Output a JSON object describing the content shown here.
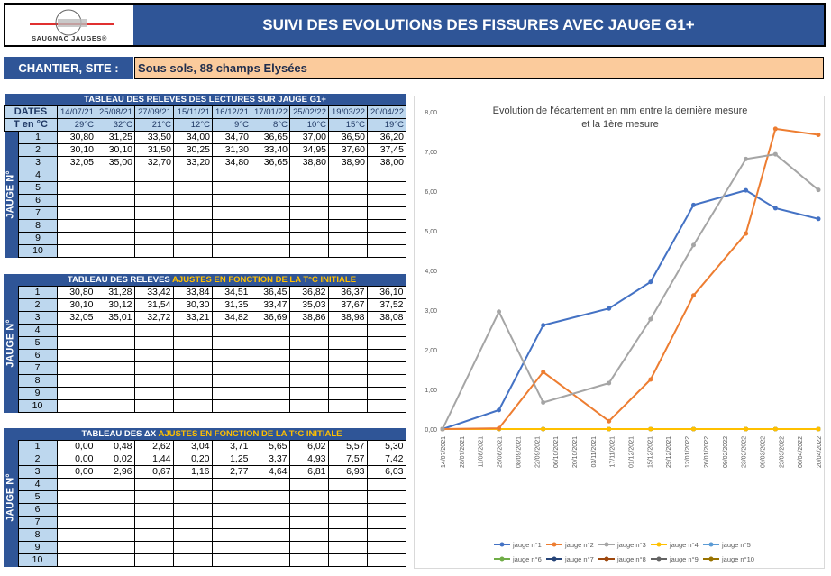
{
  "header": {
    "logo_text": "SAUGNAC JAUGES®",
    "title": "SUIVI DES EVOLUTIONS DES FISSURES AVEC JAUGE G1+"
  },
  "site": {
    "label": "CHANTIER, SITE :",
    "value": "Sous sols, 88 champs Elysées"
  },
  "side_label": "JAUGE N°",
  "dates": [
    "14/07/21",
    "25/08/21",
    "27/09/21",
    "15/11/21",
    "16/12/21",
    "17/01/22",
    "25/02/22",
    "19/03/22",
    "20/04/22"
  ],
  "temps": [
    "29°C",
    "32°C",
    "21°C",
    "12°C",
    "9°C",
    "8°C",
    "10°C",
    "15°C",
    "19°C"
  ],
  "table1": {
    "title": "TABLEAU DES RELEVES DES LECTURES SUR JAUGE G1+",
    "dates_label": "DATES",
    "temp_label": "T en °C",
    "rows": [
      [
        "30,80",
        "31,25",
        "33,50",
        "34,00",
        "34,70",
        "36,65",
        "37,00",
        "36,50",
        "36,20"
      ],
      [
        "30,10",
        "30,10",
        "31,50",
        "30,25",
        "31,30",
        "33,40",
        "34,95",
        "37,60",
        "37,45"
      ],
      [
        "32,05",
        "35,00",
        "32,70",
        "33,20",
        "34,80",
        "36,65",
        "38,80",
        "38,90",
        "38,00"
      ]
    ]
  },
  "table2": {
    "title_a": "TABLEAU DES RELEVES ",
    "title_b": "AJUSTES EN FONCTION DE LA T°C INITIALE",
    "rows": [
      [
        "30,80",
        "31,28",
        "33,42",
        "33,84",
        "34,51",
        "36,45",
        "36,82",
        "36,37",
        "36,10"
      ],
      [
        "30,10",
        "30,12",
        "31,54",
        "30,30",
        "31,35",
        "33,47",
        "35,03",
        "37,67",
        "37,52"
      ],
      [
        "32,05",
        "35,01",
        "32,72",
        "33,21",
        "34,82",
        "36,69",
        "38,86",
        "38,98",
        "38,08"
      ]
    ]
  },
  "table3": {
    "title_a": "TABLEAU DES ΔX ",
    "title_b": "AJUSTES EN FONCTION DE LA T°C INITIALE",
    "rows": [
      [
        "0,00",
        "0,48",
        "2,62",
        "3,04",
        "3,71",
        "5,65",
        "6,02",
        "5,57",
        "5,30"
      ],
      [
        "0,00",
        "0,02",
        "1,44",
        "0,20",
        "1,25",
        "3,37",
        "4,93",
        "7,57",
        "7,42"
      ],
      [
        "0,00",
        "2,96",
        "0,67",
        "1,16",
        "2,77",
        "4,64",
        "6,81",
        "6,93",
        "6,03"
      ]
    ]
  },
  "row_numbers": [
    "1",
    "2",
    "3",
    "4",
    "5",
    "6",
    "7",
    "8",
    "9",
    "10"
  ],
  "chart_data": {
    "type": "line",
    "title": "Evolution de l'écartement en mm entre la dernière mesure et la 1ère mesure",
    "title_lines": [
      "Evolution de l'écartement en mm entre la dernière mesure",
      "et la 1ère mesure"
    ],
    "x_days": [
      0,
      42,
      75,
      124,
      155,
      187,
      226,
      248,
      280
    ],
    "x_tick_labels": [
      "14/07/2021",
      "28/07/2021",
      "11/08/2021",
      "25/08/2021",
      "08/09/2021",
      "22/09/2021",
      "06/10/2021",
      "20/10/2021",
      "03/11/2021",
      "17/11/2021",
      "01/12/2021",
      "15/12/2021",
      "29/12/2021",
      "12/01/2022",
      "26/01/2022",
      "09/02/2022",
      "23/02/2022",
      "09/03/2022",
      "23/03/2022",
      "06/04/2022",
      "20/04/2022"
    ],
    "y_tick_labels": [
      "0,00",
      "1,00",
      "2,00",
      "3,00",
      "4,00",
      "5,00",
      "6,00",
      "7,00",
      "8,00"
    ],
    "ylim": [
      0,
      8
    ],
    "legend_position": "bottom",
    "series": [
      {
        "name": "jauge n°1",
        "color": "#4472C4",
        "values": [
          0,
          0.48,
          2.62,
          3.04,
          3.71,
          5.65,
          6.02,
          5.57,
          5.3
        ]
      },
      {
        "name": "jauge n°2",
        "color": "#ED7D31",
        "values": [
          0,
          0.02,
          1.44,
          0.2,
          1.25,
          3.37,
          4.93,
          7.57,
          7.42
        ]
      },
      {
        "name": "jauge n°3",
        "color": "#A5A5A5",
        "values": [
          0,
          2.96,
          0.67,
          1.16,
          2.77,
          4.64,
          6.81,
          6.93,
          6.03
        ]
      },
      {
        "name": "jauge n°4",
        "color": "#FFC000",
        "values": [
          0,
          0,
          0,
          0,
          0,
          0,
          0,
          0,
          0
        ]
      },
      {
        "name": "jauge n°5",
        "color": "#5B9BD5",
        "values": [
          0,
          0,
          0,
          0,
          0,
          0,
          0,
          0,
          0
        ]
      },
      {
        "name": "jauge n°6",
        "color": "#70AD47",
        "values": [
          0,
          0,
          0,
          0,
          0,
          0,
          0,
          0,
          0
        ]
      },
      {
        "name": "jauge n°7",
        "color": "#264478",
        "values": [
          0,
          0,
          0,
          0,
          0,
          0,
          0,
          0,
          0
        ]
      },
      {
        "name": "jauge n°8",
        "color": "#9E480E",
        "values": [
          0,
          0,
          0,
          0,
          0,
          0,
          0,
          0,
          0
        ]
      },
      {
        "name": "jauge n°9",
        "color": "#636363",
        "values": [
          0,
          0,
          0,
          0,
          0,
          0,
          0,
          0,
          0
        ]
      },
      {
        "name": "jauge n°10",
        "color": "#997300",
        "values": [
          0,
          0,
          0,
          0,
          0,
          0,
          0,
          0,
          0
        ]
      }
    ]
  }
}
